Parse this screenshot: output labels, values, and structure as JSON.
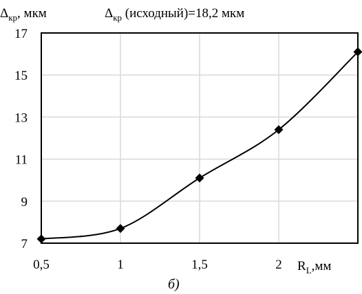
{
  "chart_data": {
    "type": "line",
    "header": {
      "ylabel_symbol": "Δ",
      "ylabel_sub": "кр",
      "ylabel_unit": ", мкм",
      "note_symbol": "Δ",
      "note_sub": "кр",
      "note_text": " (исходный)=18,2 мкм"
    },
    "xlabel": {
      "symbol": "R",
      "sub": "L",
      "unit": ",мм"
    },
    "caption": "б)",
    "x": [
      0.5,
      1,
      1.5,
      2,
      2.5
    ],
    "y": [
      7.2,
      7.7,
      10.1,
      12.4,
      16.1
    ],
    "xlim": [
      0.5,
      2.5
    ],
    "ylim": [
      7,
      17
    ],
    "x_ticks": [
      {
        "value": 0.5,
        "label": "0,5"
      },
      {
        "value": 1,
        "label": "1"
      },
      {
        "value": 1.5,
        "label": "1,5"
      },
      {
        "value": 2,
        "label": "2"
      }
    ],
    "y_ticks": [
      {
        "value": 7,
        "label": "7"
      },
      {
        "value": 9,
        "label": "9"
      },
      {
        "value": 11,
        "label": "11"
      },
      {
        "value": 13,
        "label": "13"
      },
      {
        "value": 15,
        "label": "15"
      },
      {
        "value": 17,
        "label": "17"
      }
    ],
    "grid": true,
    "marker": "diamond",
    "line_color": "#000000",
    "grid_color": "#d9d9d9"
  }
}
